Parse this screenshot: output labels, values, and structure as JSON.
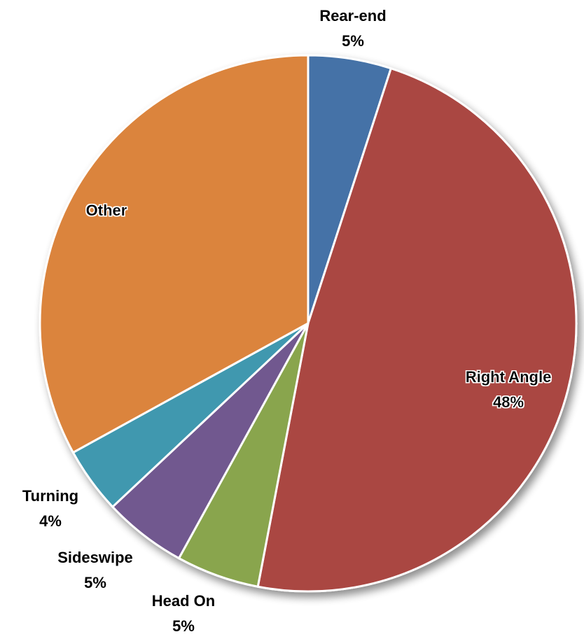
{
  "chart_data": {
    "type": "pie",
    "title": "",
    "start_angle_deg": 0,
    "direction": "clockwise",
    "slices": [
      {
        "label": "Rear-end",
        "value": 5,
        "value_label": "5%",
        "color": "#4572A7"
      },
      {
        "label": "Right Angle",
        "value": 48,
        "value_label": "48%",
        "color": "#AA4643"
      },
      {
        "label": "Head On",
        "value": 5,
        "value_label": "5%",
        "color": "#89A54E"
      },
      {
        "label": "Sideswipe",
        "value": 5,
        "value_label": "5%",
        "color": "#71588F"
      },
      {
        "label": "Turning",
        "value": 4,
        "value_label": "4%",
        "color": "#4198AF"
      },
      {
        "label": "Other",
        "value": 33,
        "value_label": "",
        "color": "#DB843D"
      }
    ],
    "slice_border_color": "#ffffff",
    "legend": "none"
  }
}
